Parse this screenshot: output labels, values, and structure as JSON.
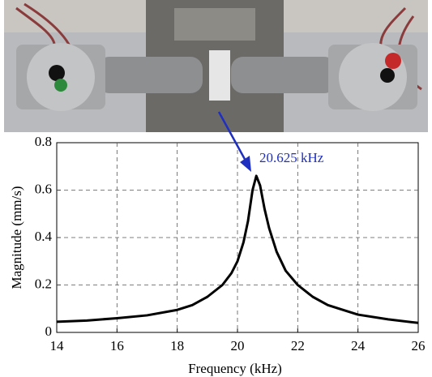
{
  "chart_data": {
    "type": "line",
    "xlabel": "Frequency (kHz)",
    "ylabel": "Magnitude (mm/s)",
    "annotation": "20.625 kHz",
    "xlim": [
      14,
      26
    ],
    "xticks": [
      14,
      16,
      18,
      20,
      22,
      24,
      26
    ],
    "ylim": [
      0,
      0.8
    ],
    "yticks": [
      0,
      0.2,
      0.4,
      0.6,
      0.8
    ],
    "grid": true,
    "series": [
      {
        "color": "#000000",
        "x": [
          14,
          15,
          16,
          17,
          18,
          18.5,
          19,
          19.5,
          19.8,
          20,
          20.2,
          20.35,
          20.5,
          20.625,
          20.75,
          20.9,
          21.05,
          21.3,
          21.6,
          22,
          22.5,
          23,
          24,
          25,
          26
        ],
        "values": [
          0.045,
          0.05,
          0.06,
          0.072,
          0.095,
          0.115,
          0.15,
          0.2,
          0.25,
          0.3,
          0.38,
          0.47,
          0.6,
          0.66,
          0.62,
          0.52,
          0.44,
          0.34,
          0.26,
          0.2,
          0.15,
          0.115,
          0.075,
          0.055,
          0.04
        ]
      }
    ]
  }
}
